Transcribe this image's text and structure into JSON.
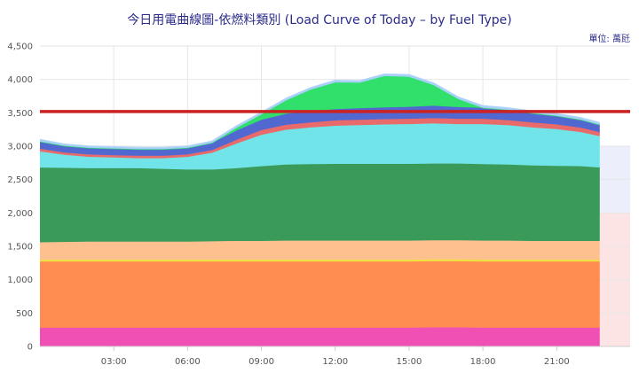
{
  "title": "今日用電曲線圖-依燃料類別 (Load Curve of Today – by Fuel Type)",
  "unit": "單位: 萬瓩",
  "colors": {
    "band_blue": "#eceffb",
    "band_red": "#fde4e4",
    "reference_line": "#cc2222"
  },
  "chart_data": {
    "type": "area",
    "stacked": true,
    "title": "今日用電曲線圖-依燃料類別 (Load Curve of Today – by Fuel Type)",
    "xlabel": "",
    "ylabel": "",
    "unit": "單位: 萬瓩",
    "ylim": [
      0,
      4500
    ],
    "yticks": [
      0,
      500,
      1000,
      1500,
      2000,
      2500,
      3000,
      3500,
      4000,
      4500
    ],
    "xlim": [
      "00:00",
      "23:59"
    ],
    "xticks": [
      "03:00",
      "06:00",
      "09:00",
      "12:00",
      "15:00",
      "18:00",
      "21:00"
    ],
    "grid": true,
    "legend": "none",
    "reference_line": 3520,
    "x": [
      "00:00",
      "01:00",
      "02:00",
      "03:00",
      "04:00",
      "05:00",
      "06:00",
      "07:00",
      "08:00",
      "09:00",
      "10:00",
      "11:00",
      "12:00",
      "13:00",
      "14:00",
      "15:00",
      "16:00",
      "17:00",
      "18:00",
      "19:00",
      "20:00",
      "21:00",
      "22:00",
      "22:45"
    ],
    "series": [
      {
        "color": "#f050b4",
        "values": [
          280,
          280,
          280,
          280,
          280,
          280,
          280,
          280,
          280,
          280,
          280,
          280,
          280,
          280,
          280,
          280,
          285,
          285,
          280,
          280,
          280,
          280,
          280,
          280
        ]
      },
      {
        "color": "#ff8c50",
        "values": [
          990,
          990,
          990,
          990,
          990,
          990,
          990,
          990,
          990,
          990,
          990,
          990,
          990,
          990,
          990,
          990,
          990,
          990,
          990,
          990,
          990,
          990,
          990,
          990
        ]
      },
      {
        "color": "#f0e040",
        "values": [
          30,
          30,
          30,
          30,
          30,
          30,
          30,
          30,
          30,
          30,
          30,
          30,
          30,
          30,
          30,
          30,
          30,
          30,
          30,
          30,
          30,
          30,
          30,
          30
        ]
      },
      {
        "color": "#ffc090",
        "values": [
          260,
          265,
          270,
          270,
          270,
          270,
          270,
          275,
          280,
          280,
          285,
          285,
          285,
          285,
          285,
          285,
          285,
          285,
          285,
          285,
          280,
          280,
          280,
          280
        ]
      },
      {
        "color": "#3a9a5a",
        "values": [
          1120,
          1110,
          1100,
          1100,
          1100,
          1090,
          1080,
          1075,
          1090,
          1120,
          1140,
          1145,
          1150,
          1150,
          1150,
          1150,
          1150,
          1150,
          1145,
          1140,
          1130,
          1125,
          1120,
          1100
        ]
      },
      {
        "color": "#70e4e8",
        "values": [
          240,
          195,
          170,
          160,
          150,
          160,
          190,
          250,
          370,
          470,
          520,
          550,
          570,
          580,
          590,
          595,
          600,
          590,
          600,
          590,
          570,
          550,
          510,
          470
        ]
      },
      {
        "color": "#e86a6a",
        "values": [
          40,
          35,
          35,
          35,
          35,
          35,
          35,
          40,
          55,
          70,
          75,
          75,
          80,
          80,
          80,
          80,
          80,
          80,
          80,
          75,
          75,
          70,
          65,
          60
        ]
      },
      {
        "color": "#5068d0",
        "values": [
          110,
          100,
          100,
          100,
          100,
          100,
          100,
          110,
          140,
          155,
          165,
          170,
          170,
          175,
          175,
          180,
          185,
          175,
          165,
          155,
          140,
          130,
          120,
          110
        ]
      },
      {
        "color": "#30e06a",
        "values": [
          0,
          0,
          0,
          0,
          0,
          0,
          0,
          0,
          40,
          80,
          200,
          320,
          400,
          380,
          470,
          450,
          310,
          120,
          0,
          0,
          0,
          0,
          0,
          0
        ]
      },
      {
        "color": "#a8d0f8",
        "values": [
          30,
          25,
          25,
          25,
          25,
          25,
          25,
          25,
          30,
          30,
          30,
          30,
          30,
          30,
          30,
          30,
          30,
          30,
          30,
          30,
          30,
          30,
          30,
          30
        ]
      }
    ]
  }
}
